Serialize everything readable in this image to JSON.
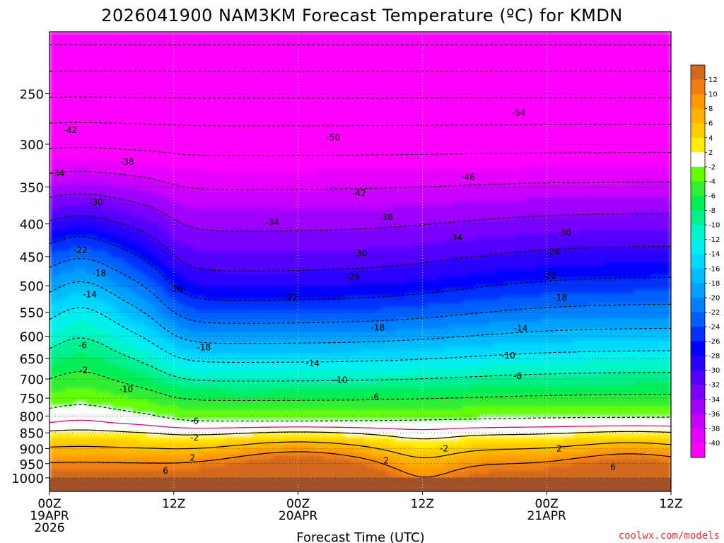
{
  "chart_data": {
    "type": "heatmap",
    "title": "2026041900 NAM3KM Forecast Temperature (ºC) for KMDN",
    "xlabel": "Forecast Time (UTC)",
    "ylabel": "",
    "y_scale": "log-pressure",
    "ylim": [
      1050,
      200
    ],
    "y_ticks": [
      250,
      300,
      350,
      400,
      450,
      500,
      550,
      600,
      650,
      700,
      750,
      800,
      850,
      900,
      950,
      1000
    ],
    "x_ticks": [
      {
        "hour": 0,
        "lines": [
          "00Z",
          "19APR",
          "2026"
        ]
      },
      {
        "hour": 12,
        "lines": [
          "12Z"
        ]
      },
      {
        "hour": 24,
        "lines": [
          "00Z",
          "20APR"
        ]
      },
      {
        "hour": 36,
        "lines": [
          "12Z"
        ]
      },
      {
        "hour": 48,
        "lines": [
          "00Z",
          "21APR"
        ]
      },
      {
        "hour": 60,
        "lines": [
          "12Z"
        ]
      }
    ],
    "xlim": [
      0,
      60
    ],
    "colorbar": {
      "labels": [
        "12",
        "10",
        "8",
        "6",
        "4",
        "2",
        "-2",
        "-4",
        "-6",
        "-8",
        "-10",
        "-12",
        "-14",
        "-16",
        "-18",
        "-20",
        "-22",
        "-24",
        "-26",
        "-28",
        "-30",
        "-32",
        "-34",
        "-36",
        "-38",
        "-40"
      ],
      "bands": [
        {
          "lo": 12,
          "hi": 14,
          "color": "#d2691e"
        },
        {
          "lo": 10,
          "hi": 12,
          "color": "#f07d16"
        },
        {
          "lo": 8,
          "hi": 10,
          "color": "#ff9a00"
        },
        {
          "lo": 6,
          "hi": 8,
          "color": "#ffb300"
        },
        {
          "lo": 4,
          "hi": 6,
          "color": "#ffcc00"
        },
        {
          "lo": 2,
          "hi": 4,
          "color": "#ffee00"
        },
        {
          "lo": -2,
          "hi": 2,
          "color": "#ffffff"
        },
        {
          "lo": -4,
          "hi": -2,
          "color": "#66ff00"
        },
        {
          "lo": -6,
          "hi": -4,
          "color": "#33ee33"
        },
        {
          "lo": -8,
          "hi": -6,
          "color": "#00ee55"
        },
        {
          "lo": -10,
          "hi": -8,
          "color": "#00f08c"
        },
        {
          "lo": -12,
          "hi": -10,
          "color": "#00f5c8"
        },
        {
          "lo": -14,
          "hi": -12,
          "color": "#00f0f0"
        },
        {
          "lo": -16,
          "hi": -14,
          "color": "#00d8ff"
        },
        {
          "lo": -18,
          "hi": -16,
          "color": "#00bcff"
        },
        {
          "lo": -20,
          "hi": -18,
          "color": "#00a0ff"
        },
        {
          "lo": -22,
          "hi": -20,
          "color": "#0080ff"
        },
        {
          "lo": -24,
          "hi": -22,
          "color": "#0060ff"
        },
        {
          "lo": -26,
          "hi": -24,
          "color": "#0033ff"
        },
        {
          "lo": -28,
          "hi": -26,
          "color": "#0000ff"
        },
        {
          "lo": -30,
          "hi": -28,
          "color": "#2a00ff"
        },
        {
          "lo": -32,
          "hi": -30,
          "color": "#5500ff"
        },
        {
          "lo": -34,
          "hi": -32,
          "color": "#7a00ff"
        },
        {
          "lo": -36,
          "hi": -34,
          "color": "#a000ff"
        },
        {
          "lo": -38,
          "hi": -36,
          "color": "#c800ff"
        },
        {
          "lo": -40,
          "hi": -38,
          "color": "#e600ff"
        },
        {
          "lo": -999,
          "hi": -40,
          "color": "#ff00ff"
        }
      ]
    },
    "ground_color": "#a0522d",
    "freezing_line_color": "#e0006e",
    "contour_labels": [
      {
        "t": 2,
        "p": 285,
        "v": "-42"
      },
      {
        "t": 7.5,
        "p": 320,
        "v": "-38"
      },
      {
        "t": 0.8,
        "p": 333,
        "v": "-34"
      },
      {
        "t": 4.5,
        "p": 370,
        "v": "-30"
      },
      {
        "t": 3,
        "p": 440,
        "v": "-22"
      },
      {
        "t": 4.8,
        "p": 478,
        "v": "-18"
      },
      {
        "t": 3.9,
        "p": 516,
        "v": "-14"
      },
      {
        "t": 12.2,
        "p": 506,
        "v": "-26"
      },
      {
        "t": 3.2,
        "p": 620,
        "v": "-6"
      },
      {
        "t": 3.3,
        "p": 678,
        "v": "-2"
      },
      {
        "t": 7.4,
        "p": 726,
        "v": "-10"
      },
      {
        "t": 14.9,
        "p": 625,
        "v": "-18"
      },
      {
        "t": 14,
        "p": 815,
        "v": "-6"
      },
      {
        "t": 14,
        "p": 865,
        "v": "-2"
      },
      {
        "t": 13.8,
        "p": 930,
        "v": "2"
      },
      {
        "t": 11.2,
        "p": 975,
        "v": "6"
      },
      {
        "t": 21.5,
        "p": 398,
        "v": "-34"
      },
      {
        "t": 27.4,
        "p": 293,
        "v": "-50"
      },
      {
        "t": 29.9,
        "p": 358,
        "v": "-42"
      },
      {
        "t": 32.5,
        "p": 390,
        "v": "-38"
      },
      {
        "t": 30,
        "p": 445,
        "v": "-30"
      },
      {
        "t": 29.3,
        "p": 484,
        "v": "-26"
      },
      {
        "t": 23.3,
        "p": 522,
        "v": "-22"
      },
      {
        "t": 31.7,
        "p": 582,
        "v": "-18"
      },
      {
        "t": 25.4,
        "p": 662,
        "v": "-14"
      },
      {
        "t": 28.1,
        "p": 703,
        "v": "-10"
      },
      {
        "t": 31.4,
        "p": 747,
        "v": "-6"
      },
      {
        "t": 32.5,
        "p": 940,
        "v": "2"
      },
      {
        "t": 38.1,
        "p": 900,
        "v": "-2"
      },
      {
        "t": 39.2,
        "p": 420,
        "v": "-34"
      },
      {
        "t": 40.4,
        "p": 338,
        "v": "-46"
      },
      {
        "t": 45.3,
        "p": 268,
        "v": "-54"
      },
      {
        "t": 49.7,
        "p": 413,
        "v": "-30"
      },
      {
        "t": 48.6,
        "p": 442,
        "v": "-26"
      },
      {
        "t": 48.3,
        "p": 483,
        "v": "-22"
      },
      {
        "t": 49.3,
        "p": 522,
        "v": "-18"
      },
      {
        "t": 45.5,
        "p": 583,
        "v": "-14"
      },
      {
        "t": 44.3,
        "p": 643,
        "v": "-10"
      },
      {
        "t": 45.2,
        "p": 693,
        "v": "-6"
      },
      {
        "t": 49.2,
        "p": 900,
        "v": "2"
      },
      {
        "t": 54.4,
        "p": 962,
        "v": "6"
      }
    ],
    "grid": true
  },
  "credit": "coolwx.com/models"
}
